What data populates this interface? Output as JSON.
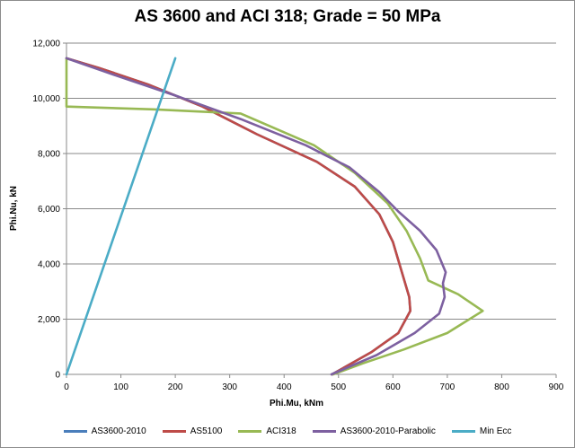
{
  "chart_data": {
    "type": "line",
    "title": "AS 3600 and ACI 318; Grade = 50 MPa",
    "xlabel": "Phi.Mu, kNm",
    "ylabel": "Phi.Nu, kN",
    "xlim": [
      0,
      900
    ],
    "ylim": [
      0,
      12000
    ],
    "x_ticks": [
      0,
      100,
      200,
      300,
      400,
      500,
      600,
      700,
      800,
      900
    ],
    "y_ticks": [
      0,
      2000,
      4000,
      6000,
      8000,
      10000,
      12000
    ],
    "x_tick_labels": [
      "0",
      "100",
      "200",
      "300",
      "400",
      "500",
      "600",
      "700",
      "800",
      "900"
    ],
    "y_tick_labels": [
      "0",
      "2,000",
      "4,000",
      "6,000",
      "8,000",
      "10,000",
      "12,000"
    ],
    "grid": "horizontal",
    "legend_position": "bottom",
    "series": [
      {
        "name": "AS3600-2010",
        "color": "#4a7ebb",
        "points": [
          [
            0,
            11450
          ],
          [
            60,
            11100
          ],
          [
            150,
            10500
          ],
          [
            250,
            9700
          ],
          [
            350,
            8700
          ],
          [
            460,
            7700
          ],
          [
            530,
            6800
          ],
          [
            575,
            5800
          ],
          [
            600,
            4800
          ],
          [
            615,
            3800
          ],
          [
            630,
            2800
          ],
          [
            632,
            2300
          ],
          [
            610,
            1500
          ],
          [
            560,
            800
          ],
          [
            488,
            0
          ]
        ]
      },
      {
        "name": "AS5100",
        "color": "#be4b48",
        "points": [
          [
            0,
            11450
          ],
          [
            60,
            11100
          ],
          [
            150,
            10500
          ],
          [
            250,
            9700
          ],
          [
            350,
            8700
          ],
          [
            460,
            7700
          ],
          [
            530,
            6800
          ],
          [
            575,
            5800
          ],
          [
            600,
            4800
          ],
          [
            615,
            3800
          ],
          [
            630,
            2800
          ],
          [
            632,
            2300
          ],
          [
            610,
            1500
          ],
          [
            560,
            800
          ],
          [
            488,
            0
          ]
        ]
      },
      {
        "name": "ACI318",
        "color": "#98b954",
        "points": [
          [
            0,
            11450
          ],
          [
            0,
            9700
          ],
          [
            160,
            9600
          ],
          [
            320,
            9450
          ],
          [
            455,
            8300
          ],
          [
            530,
            7300
          ],
          [
            590,
            6200
          ],
          [
            625,
            5200
          ],
          [
            650,
            4200
          ],
          [
            665,
            3400
          ],
          [
            720,
            2900
          ],
          [
            765,
            2300
          ],
          [
            700,
            1500
          ],
          [
            620,
            900
          ],
          [
            545,
            400
          ],
          [
            490,
            0
          ]
        ]
      },
      {
        "name": "AS3600-2010-Parabolic",
        "color": "#7d60a0",
        "points": [
          [
            0,
            11450
          ],
          [
            80,
            10900
          ],
          [
            200,
            10100
          ],
          [
            320,
            9250
          ],
          [
            440,
            8300
          ],
          [
            520,
            7500
          ],
          [
            575,
            6600
          ],
          [
            610,
            5900
          ],
          [
            650,
            5200
          ],
          [
            680,
            4500
          ],
          [
            697,
            3700
          ],
          [
            692,
            3300
          ],
          [
            695,
            2800
          ],
          [
            685,
            2200
          ],
          [
            640,
            1500
          ],
          [
            570,
            700
          ],
          [
            487,
            0
          ]
        ]
      },
      {
        "name": "Min Ecc",
        "color": "#4bacc6",
        "points": [
          [
            0,
            0
          ],
          [
            200,
            11450
          ]
        ]
      }
    ]
  }
}
